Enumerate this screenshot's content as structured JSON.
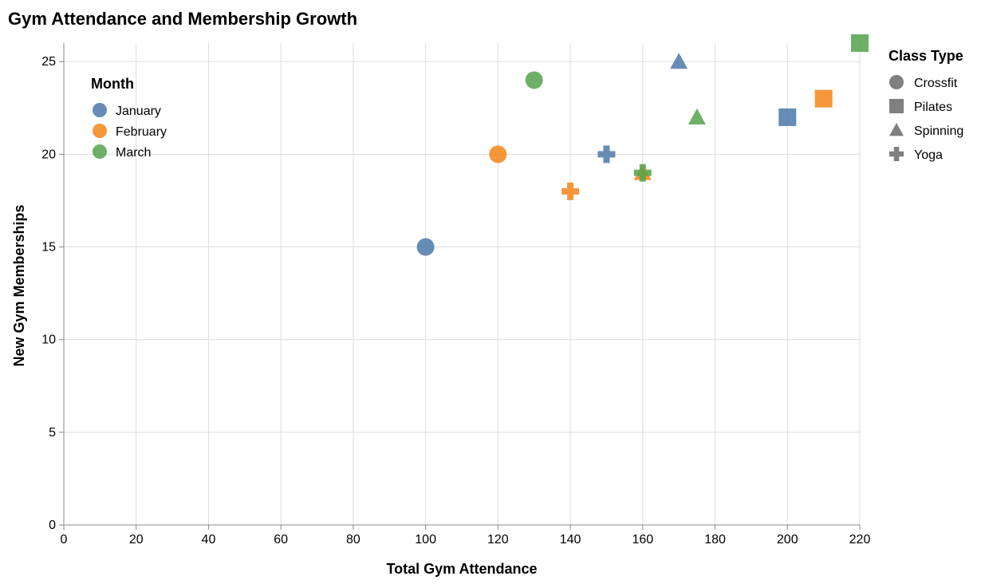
{
  "chart_data": {
    "type": "scatter",
    "title": "Gym Attendance and Membership Growth",
    "xlabel": "Total Gym Attendance",
    "ylabel": "New Gym Memberships",
    "xlim": [
      0,
      220
    ],
    "ylim": [
      0,
      26
    ],
    "x_ticks": [
      0,
      20,
      40,
      60,
      80,
      100,
      120,
      140,
      160,
      180,
      200,
      220
    ],
    "y_ticks": [
      0,
      5,
      10,
      15,
      20,
      25
    ],
    "grid": true,
    "color_legend": {
      "title": "Month",
      "placement": "top-left",
      "entries": [
        {
          "label": "January",
          "color": "#4c78a8"
        },
        {
          "label": "February",
          "color": "#f58518"
        },
        {
          "label": "March",
          "color": "#54a24b"
        }
      ]
    },
    "shape_legend": {
      "title": "Class Type",
      "placement": "right",
      "entries": [
        {
          "label": "Crossfit",
          "shape": "circle"
        },
        {
          "label": "Pilates",
          "shape": "square"
        },
        {
          "label": "Spinning",
          "shape": "triangle"
        },
        {
          "label": "Yoga",
          "shape": "cross"
        }
      ]
    },
    "points": [
      {
        "month": "January",
        "class_type": "Crossfit",
        "x": 100,
        "y": 15
      },
      {
        "month": "January",
        "class_type": "Pilates",
        "x": 200,
        "y": 22
      },
      {
        "month": "January",
        "class_type": "Spinning",
        "x": 170,
        "y": 25
      },
      {
        "month": "January",
        "class_type": "Yoga",
        "x": 150,
        "y": 20
      },
      {
        "month": "February",
        "class_type": "Crossfit",
        "x": 120,
        "y": 20
      },
      {
        "month": "February",
        "class_type": "Pilates",
        "x": 210,
        "y": 23
      },
      {
        "month": "February",
        "class_type": "Spinning",
        "x": 160,
        "y": 19
      },
      {
        "month": "February",
        "class_type": "Yoga",
        "x": 140,
        "y": 18
      },
      {
        "month": "March",
        "class_type": "Crossfit",
        "x": 130,
        "y": 24
      },
      {
        "month": "March",
        "class_type": "Pilates",
        "x": 220,
        "y": 26
      },
      {
        "month": "March",
        "class_type": "Spinning",
        "x": 175,
        "y": 22
      },
      {
        "month": "March",
        "class_type": "Yoga",
        "x": 160,
        "y": 19
      }
    ]
  }
}
